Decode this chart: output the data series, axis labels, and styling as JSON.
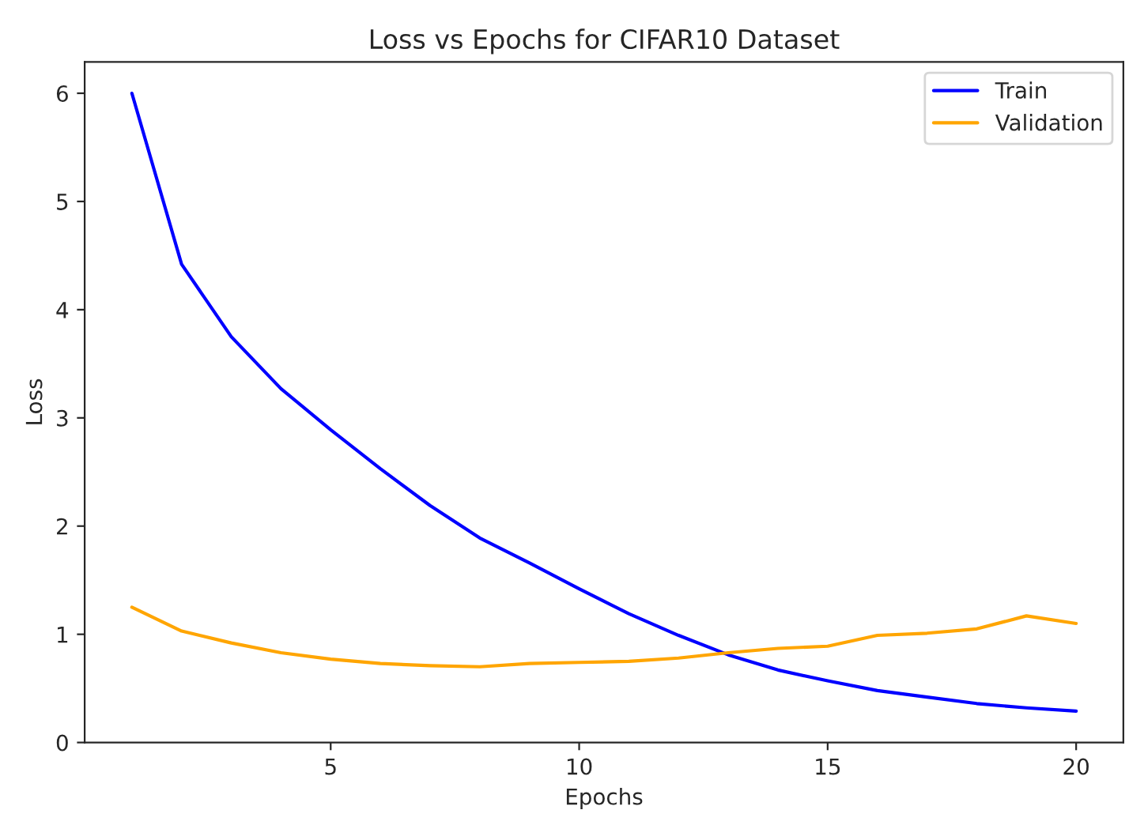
{
  "chart_data": {
    "type": "line",
    "title": "Loss vs Epochs for CIFAR10 Dataset",
    "xlabel": "Epochs",
    "ylabel": "Loss",
    "x": [
      1,
      2,
      3,
      4,
      5,
      6,
      7,
      8,
      9,
      10,
      11,
      12,
      13,
      14,
      15,
      16,
      17,
      18,
      19,
      20
    ],
    "series": [
      {
        "name": "Train",
        "color": "#0000ff",
        "values": [
          6.0,
          4.42,
          3.75,
          3.27,
          2.89,
          2.53,
          2.19,
          1.89,
          1.66,
          1.42,
          1.19,
          0.99,
          0.81,
          0.67,
          0.57,
          0.48,
          0.42,
          0.36,
          0.32,
          0.29
        ]
      },
      {
        "name": "Validation",
        "color": "#ffa500",
        "values": [
          1.25,
          1.03,
          0.92,
          0.83,
          0.77,
          0.73,
          0.71,
          0.7,
          0.73,
          0.74,
          0.75,
          0.78,
          0.83,
          0.87,
          0.89,
          0.99,
          1.01,
          1.05,
          1.17,
          1.1
        ]
      }
    ],
    "xlim": [
      0.05,
      20.95
    ],
    "xticks": [
      5,
      10,
      15,
      20
    ],
    "ylim": [
      0,
      6.29
    ],
    "yticks": [
      0,
      1,
      2,
      3,
      4,
      5,
      6
    ],
    "legend": "top right",
    "grid": false
  }
}
